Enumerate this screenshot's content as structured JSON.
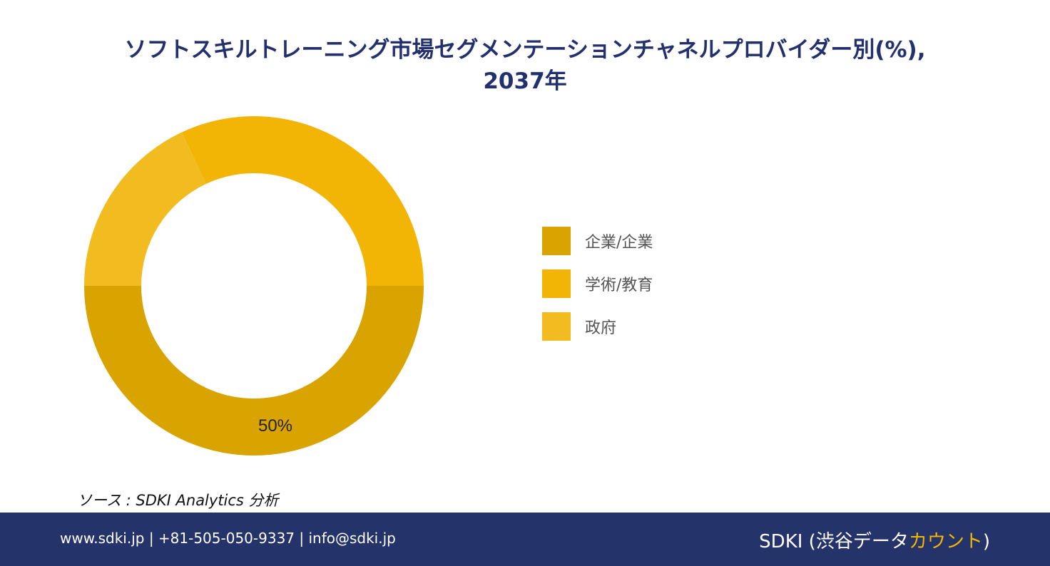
{
  "chart_data": {
    "type": "pie",
    "variant": "donut",
    "title": "ソフトスキルトレーニング市場セグメンテーションチャネルプロバイダー別(%), 2037年",
    "title_lines": [
      "ソフトスキルトレーニング市場セグメンテーションチャネルプロバイダー別(%),",
      "2037年"
    ],
    "categories": [
      "企業/企業",
      "学術/教育",
      "政府"
    ],
    "values": [
      50,
      32,
      18
    ],
    "data_labels": [
      "50%",
      "",
      ""
    ],
    "colors": [
      "#d9a300",
      "#f3b505",
      "#f2bb1f"
    ],
    "legend_position": "right"
  },
  "source": "ソース : SDKI Analytics 分析",
  "footer": {
    "contact": "www.sdki.jp | +81-505-050-9337 | info@sdki.jp",
    "brand_main": "SDKI (渋谷データ",
    "brand_accent": "カウント",
    "brand_close": ")"
  }
}
